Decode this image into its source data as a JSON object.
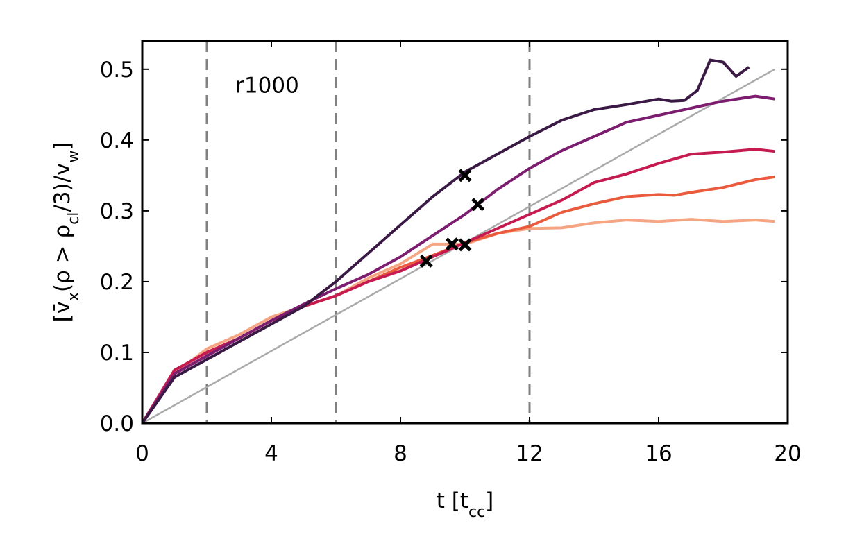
{
  "chart_data": {
    "type": "line",
    "annotation": "r1000",
    "xlabel": [
      {
        "text": "t [t"
      },
      {
        "text": "cc",
        "sub": true
      },
      {
        "text": "]"
      }
    ],
    "ylabel": [
      {
        "text": "[v̄"
      },
      {
        "text": "x",
        "sub": true
      },
      {
        "text": "(ρ > ρ"
      },
      {
        "text": "cl",
        "sub": true
      },
      {
        "text": "/3)/v"
      },
      {
        "text": "w",
        "sub": true
      },
      {
        "text": "]"
      }
    ],
    "xlim": [
      0,
      20
    ],
    "ylim": [
      0,
      0.54
    ],
    "xticks": [
      0,
      4,
      8,
      12,
      16,
      20
    ],
    "yticks": [
      {
        "value": 0,
        "label": "0.0"
      },
      0.1,
      0.2,
      0.3,
      0.4,
      0.5
    ],
    "vlines": [
      2,
      6,
      12
    ],
    "vline_color": "#808080",
    "reference": {
      "color": "#aaaaaa",
      "x": [
        0,
        19.6
      ],
      "values": [
        0,
        0.5
      ]
    },
    "series": [
      {
        "color": "#f5a582",
        "x": [
          0,
          1,
          2,
          3,
          4,
          5,
          6,
          7,
          8,
          9,
          9.6,
          10,
          11,
          12,
          13,
          14,
          15,
          16,
          17,
          18,
          19,
          19.6
        ],
        "values": [
          0,
          0.07,
          0.105,
          0.125,
          0.15,
          0.165,
          0.18,
          0.205,
          0.225,
          0.253,
          0.253,
          0.253,
          0.268,
          0.275,
          0.276,
          0.283,
          0.287,
          0.285,
          0.288,
          0.285,
          0.287,
          0.285
        ]
      },
      {
        "color": "#ea5b3d",
        "x": [
          0,
          1,
          2,
          3,
          4,
          5,
          6,
          7,
          8,
          9,
          10,
          11,
          12,
          13,
          14,
          15,
          16,
          16.5,
          17,
          18,
          19,
          19.6
        ],
        "values": [
          0,
          0.075,
          0.1,
          0.12,
          0.145,
          0.165,
          0.18,
          0.2,
          0.22,
          0.237,
          0.255,
          0.268,
          0.278,
          0.298,
          0.31,
          0.32,
          0.323,
          0.322,
          0.326,
          0.333,
          0.344,
          0.348
        ]
      },
      {
        "color": "#c51b50",
        "x": [
          0,
          1,
          2,
          3,
          4,
          5,
          6,
          7,
          8,
          9,
          10,
          11,
          12,
          13,
          14,
          15,
          16,
          17,
          18,
          19,
          19.6
        ],
        "values": [
          0,
          0.075,
          0.1,
          0.12,
          0.145,
          0.165,
          0.18,
          0.2,
          0.215,
          0.235,
          0.255,
          0.275,
          0.295,
          0.315,
          0.34,
          0.352,
          0.367,
          0.38,
          0.383,
          0.387,
          0.384
        ]
      },
      {
        "color": "#7c1d6f",
        "x": [
          0,
          1,
          2,
          3,
          4,
          5,
          6,
          7,
          8,
          9,
          10,
          11,
          12,
          13,
          14,
          15,
          16,
          17,
          18,
          19,
          19.6
        ],
        "values": [
          0,
          0.07,
          0.095,
          0.12,
          0.145,
          0.168,
          0.19,
          0.21,
          0.235,
          0.265,
          0.295,
          0.33,
          0.36,
          0.385,
          0.405,
          0.425,
          0.435,
          0.445,
          0.455,
          0.462,
          0.458
        ]
      },
      {
        "color": "#3a1a45",
        "x": [
          0,
          1,
          2,
          3,
          4,
          5,
          6,
          7,
          8,
          9,
          10,
          11,
          12,
          13,
          14,
          15,
          16,
          16.4,
          16.8,
          17.2,
          17.6,
          18,
          18.4,
          18.8
        ],
        "values": [
          0,
          0.065,
          0.09,
          0.115,
          0.14,
          0.165,
          0.2,
          0.24,
          0.28,
          0.32,
          0.355,
          0.38,
          0.405,
          0.428,
          0.443,
          0.45,
          0.458,
          0.455,
          0.456,
          0.47,
          0.513,
          0.51,
          0.49,
          0.503
        ]
      }
    ],
    "markers": {
      "color": "#000000",
      "x": [
        10,
        10.4,
        8.8,
        9.6,
        10
      ],
      "values": [
        0.35,
        0.309,
        0.229,
        0.253,
        0.252
      ]
    }
  }
}
